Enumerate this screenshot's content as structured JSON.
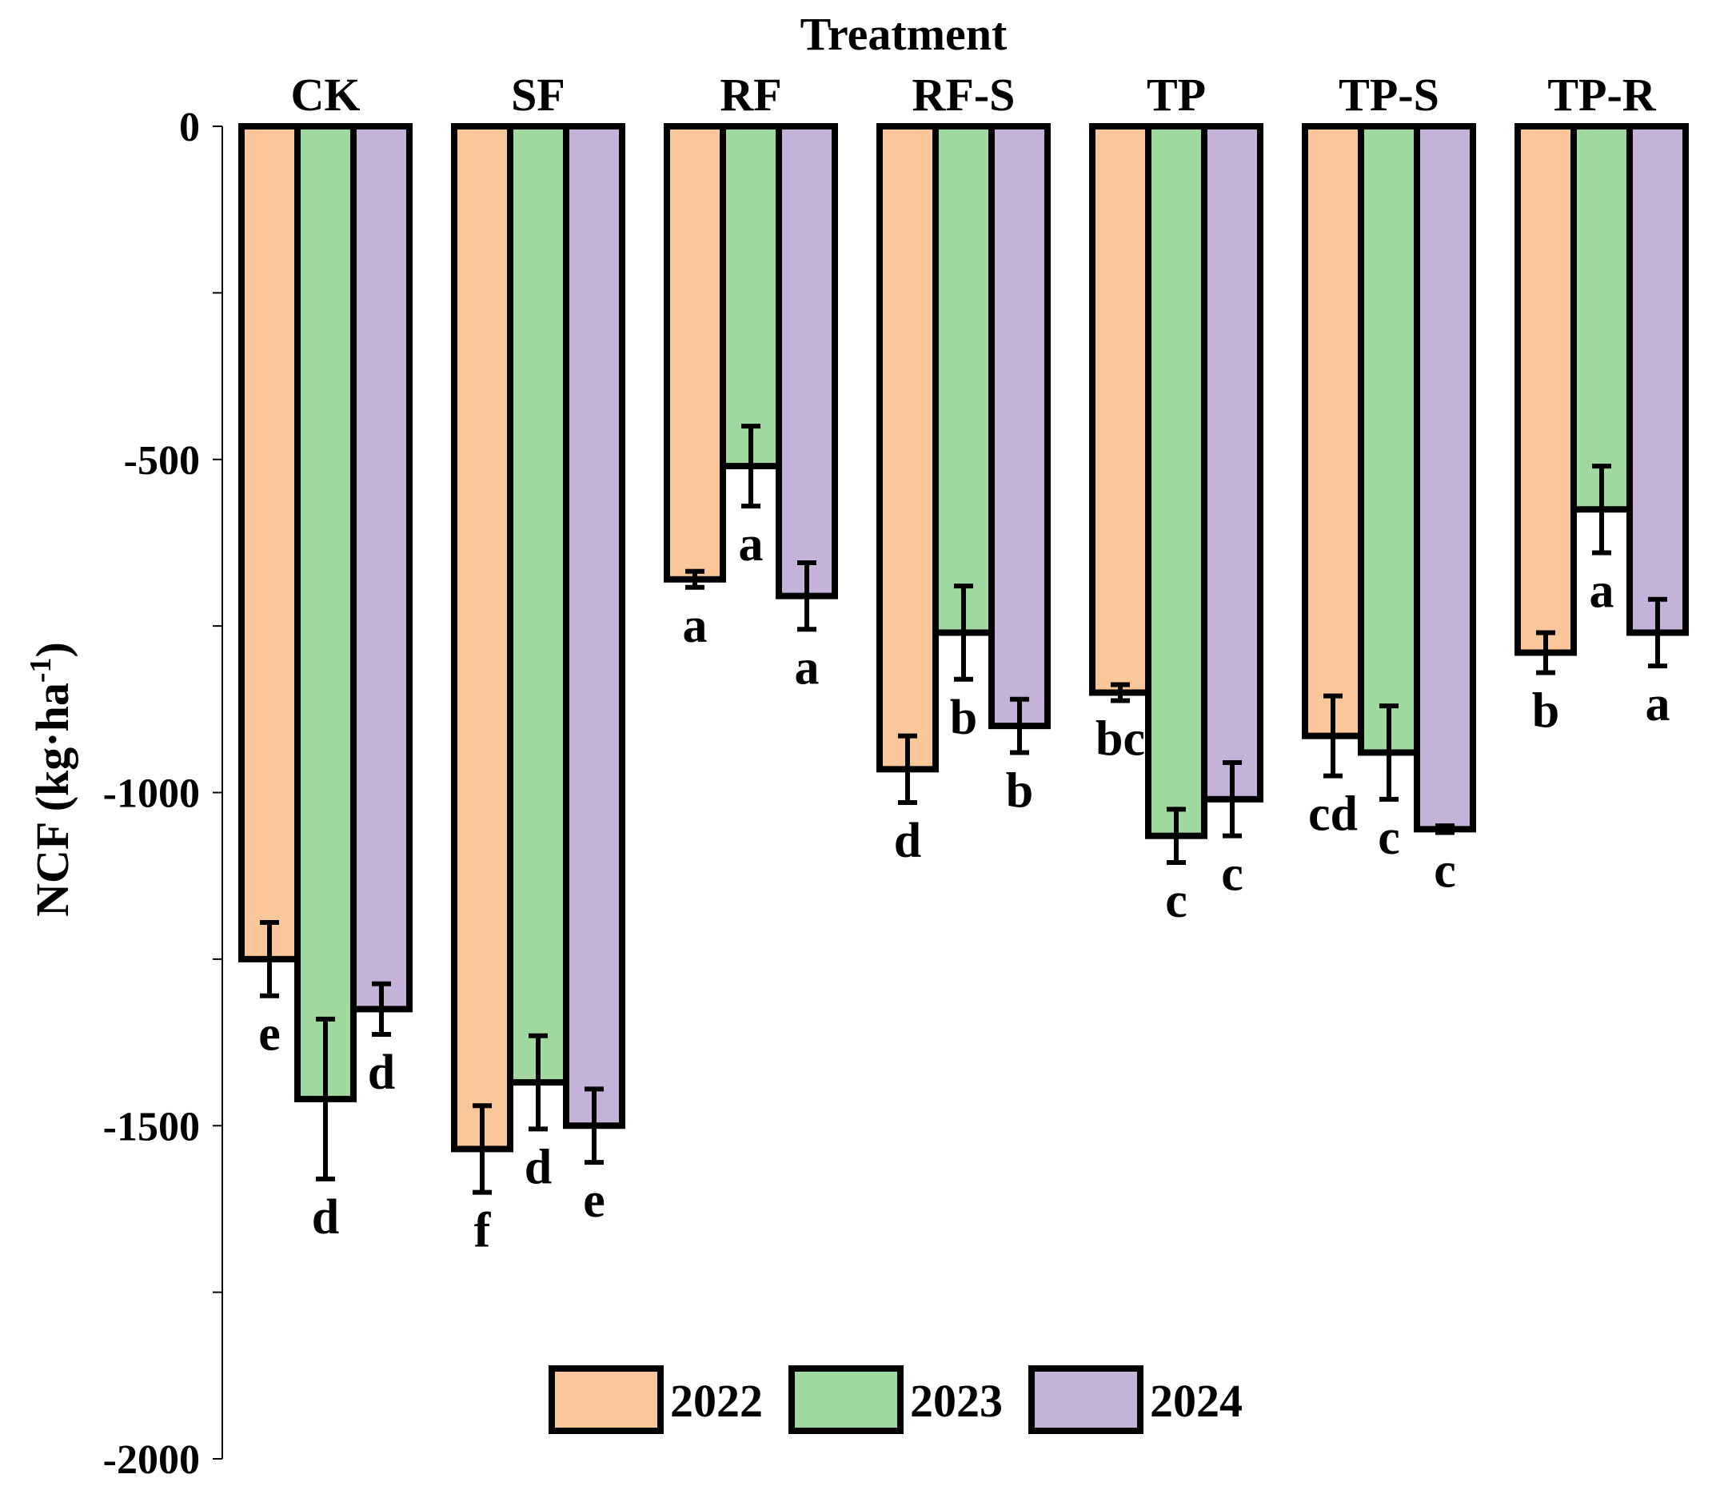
{
  "chart_data": {
    "type": "bar",
    "title": "Treatment",
    "ylabel": "NCF (kg·ha",
    "ylabel_superscript": "-1",
    "ylabel_close": ")",
    "xlabel": "",
    "ylim": [
      -2000,
      0
    ],
    "yticks": [
      0,
      -500,
      -1000,
      -1500,
      -2000
    ],
    "ytick_labels": [
      "0",
      "-500",
      "-1000",
      "-1500",
      "-2000"
    ],
    "minor_yticks": [
      -250,
      -750,
      -1250,
      -1750
    ],
    "categories": [
      "CK",
      "SF",
      "RF",
      "RF-S",
      "TP",
      "TP-S",
      "TP-R"
    ],
    "legend_position": "bottom",
    "series": [
      {
        "name": "2022",
        "color": "#F9C79A",
        "values": [
          -1250,
          -1535,
          -680,
          -965,
          -850,
          -915,
          -790
        ],
        "errors": [
          55,
          65,
          12,
          50,
          12,
          60,
          30
        ],
        "letters": [
          "e",
          "f",
          "a",
          "d",
          "bc",
          "cd",
          "b"
        ]
      },
      {
        "name": "2023",
        "color": "#9FD99F",
        "values": [
          -1460,
          -1435,
          -510,
          -760,
          -1065,
          -940,
          -575
        ],
        "errors": [
          120,
          70,
          60,
          70,
          40,
          70,
          65
        ],
        "letters": [
          "d",
          "d",
          "a",
          "b",
          "c",
          "c",
          "a"
        ]
      },
      {
        "name": "2024",
        "color": "#C4B2D8",
        "values": [
          -1325,
          -1500,
          -705,
          -900,
          -1010,
          -1055,
          -760
        ],
        "errors": [
          38,
          55,
          50,
          40,
          55,
          5,
          50
        ],
        "letters": [
          "d",
          "e",
          "a",
          "b",
          "c",
          "c",
          "a"
        ]
      }
    ]
  }
}
